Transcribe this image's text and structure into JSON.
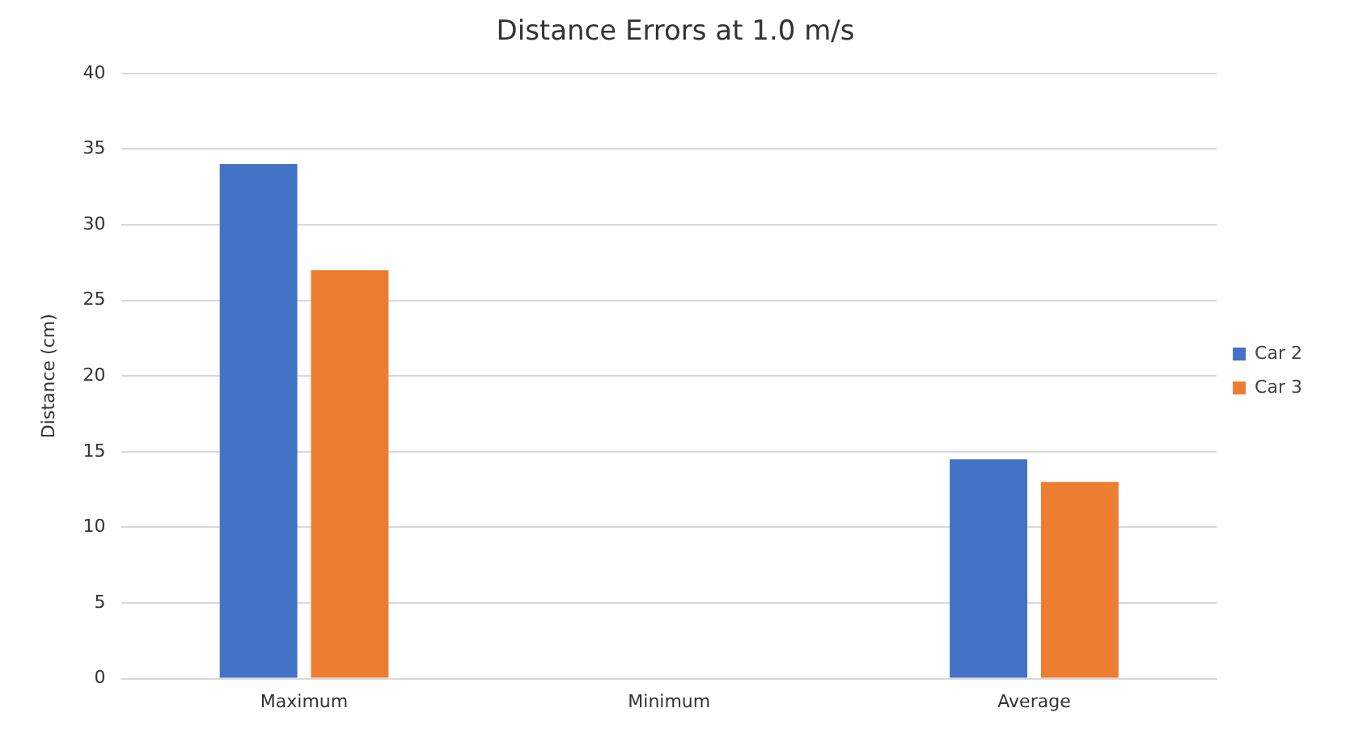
{
  "chart_data": {
    "type": "bar",
    "title": "Distance Errors at 1.0 m/s",
    "ylabel": "Distance (cm)",
    "categories": [
      "Maximum",
      "Minimum",
      "Average"
    ],
    "series": [
      {
        "name": "Car 2",
        "color": "#4472c4",
        "values": [
          34,
          0,
          14.5
        ]
      },
      {
        "name": "Car 3",
        "color": "#ed7d31",
        "values": [
          27,
          0,
          13
        ]
      }
    ],
    "ylim": [
      0,
      40
    ],
    "yticks": [
      0,
      5,
      10,
      15,
      20,
      25,
      30,
      35,
      40
    ],
    "grid": "y",
    "legend": "right"
  }
}
